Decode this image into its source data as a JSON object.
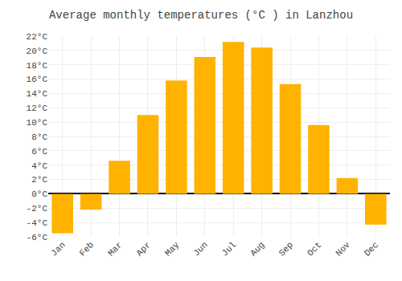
{
  "chart_data": {
    "type": "bar",
    "title": "Average monthly temperatures (°C ) in Lanzhou",
    "categories": [
      "Jan",
      "Feb",
      "Mar",
      "Apr",
      "May",
      "Jun",
      "Jul",
      "Aug",
      "Sep",
      "Oct",
      "Nov",
      "Dec"
    ],
    "values": [
      -5.5,
      -2.2,
      4.6,
      11.0,
      15.8,
      19.1,
      21.2,
      20.4,
      15.3,
      9.6,
      2.2,
      -4.3
    ],
    "color": "#FFB300",
    "ylim": [
      -6,
      22
    ],
    "yticks": [
      {
        "value": -6,
        "label": "-6°C"
      },
      {
        "value": -4,
        "label": "-4°C"
      },
      {
        "value": -2,
        "label": "-2°C"
      },
      {
        "value": 0,
        "label": "0°C"
      },
      {
        "value": 2,
        "label": "2°C"
      },
      {
        "value": 4,
        "label": "4°C"
      },
      {
        "value": 6,
        "label": "6°C"
      },
      {
        "value": 8,
        "label": "8°C"
      },
      {
        "value": 10,
        "label": "10°C"
      },
      {
        "value": 12,
        "label": "12°C"
      },
      {
        "value": 14,
        "label": "14°C"
      },
      {
        "value": 16,
        "label": "16°C"
      },
      {
        "value": 18,
        "label": "18°C"
      },
      {
        "value": 20,
        "label": "20°C"
      },
      {
        "value": 22,
        "label": "22°C"
      }
    ],
    "grid": true
  }
}
